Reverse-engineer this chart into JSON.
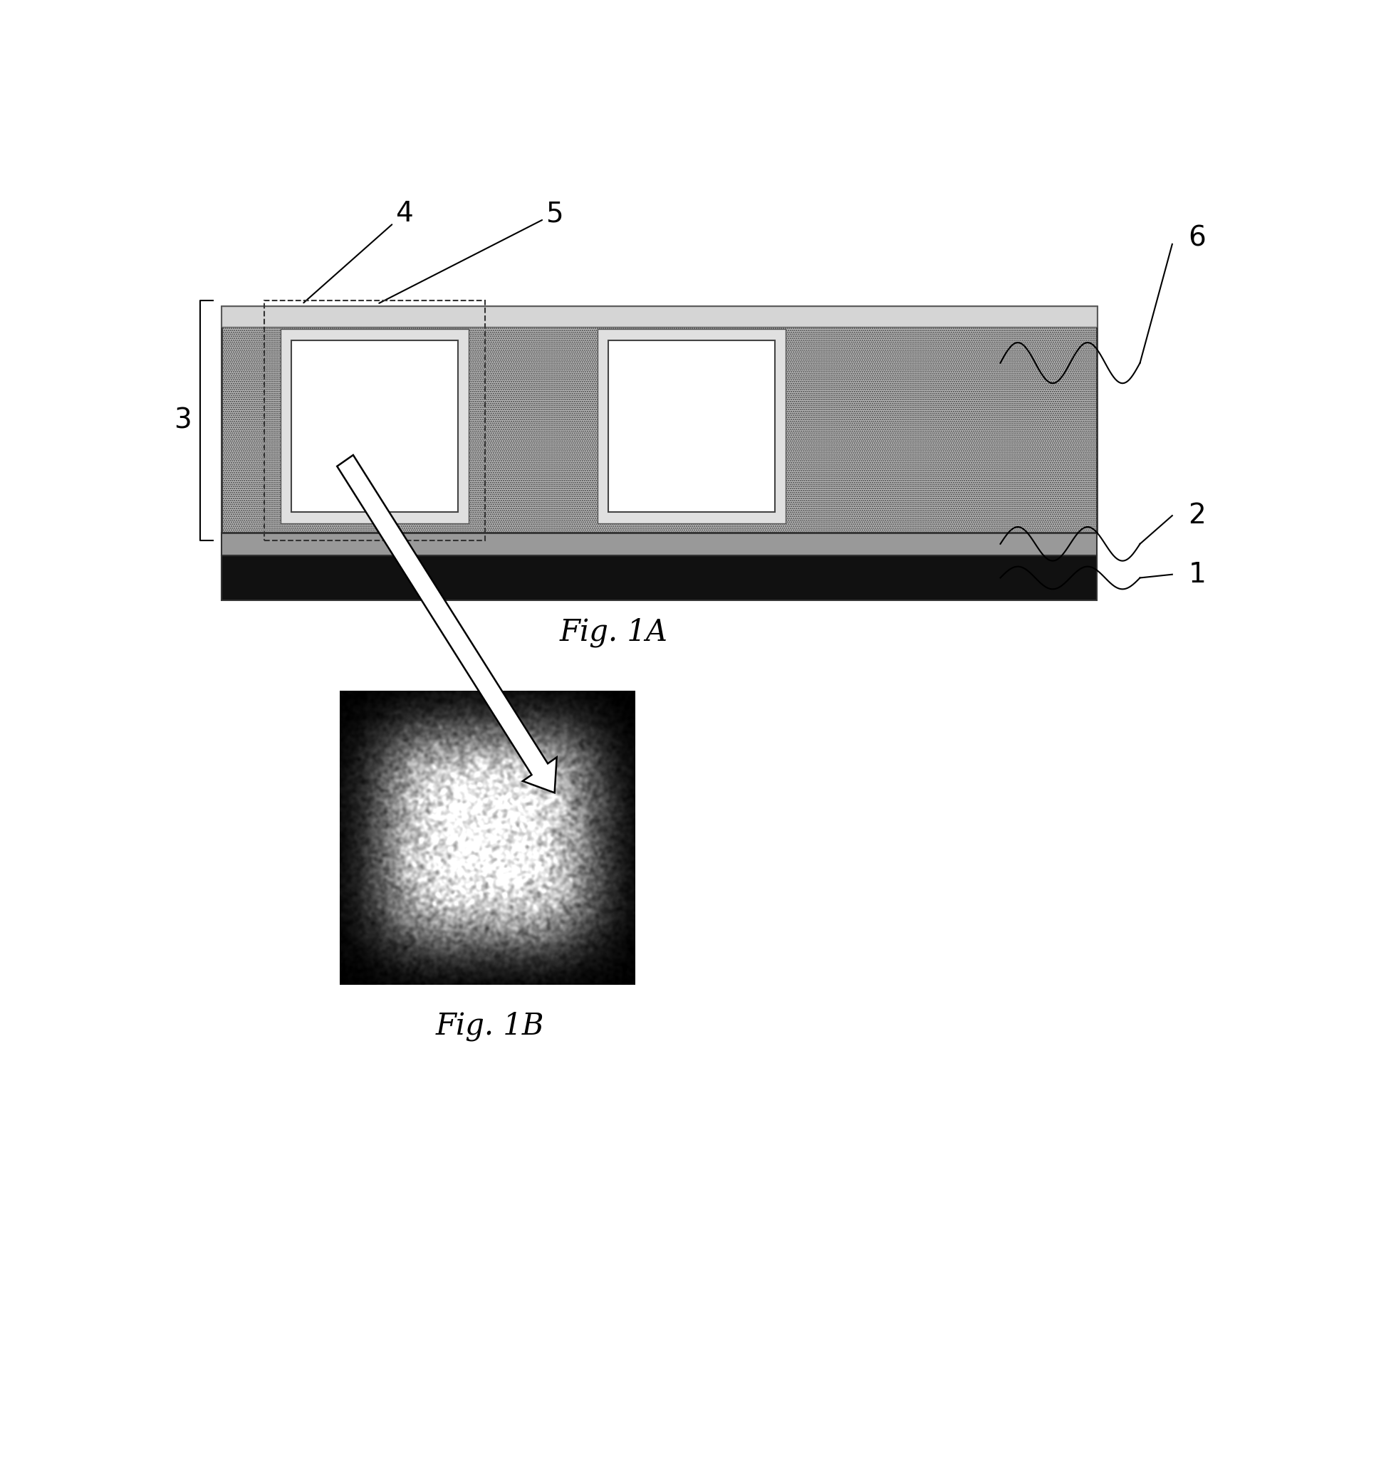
{
  "fig_width": 19.46,
  "fig_height": 20.63,
  "bg_color": "#ffffff",
  "fig1a_label": "Fig. 1A",
  "fig1b_label": "Fig. 1B",
  "label_fontsize": 30,
  "ref_fontsize": 28,
  "substrate_color": "#111111",
  "lower_clad_color": "#999999",
  "upper_clad_color": "#c0c0c0",
  "waveguide_fill": "#ffffff",
  "thin_layer_color": "#d8d8d8",
  "border_color": "#333333"
}
